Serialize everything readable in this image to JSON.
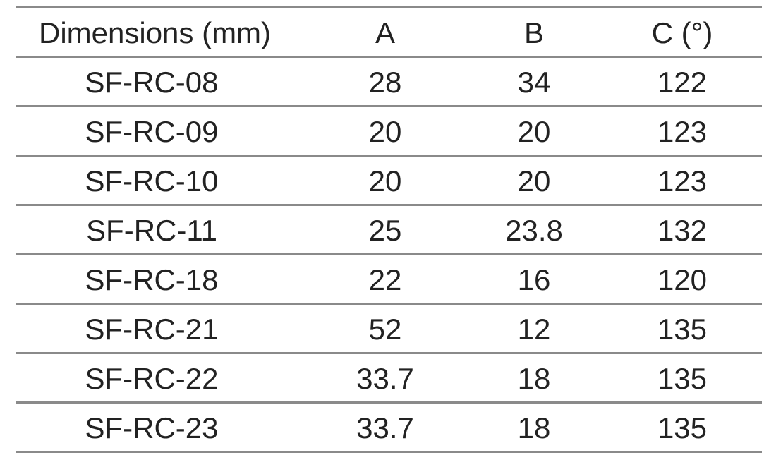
{
  "table": {
    "header": [
      "Dimensions (mm)",
      "A",
      "B",
      "C (°)"
    ],
    "rows": [
      [
        "SF-RC-08",
        28,
        34,
        122
      ],
      [
        "SF-RC-09",
        20,
        20,
        123
      ],
      [
        "SF-RC-10",
        20,
        20,
        123
      ],
      [
        "SF-RC-11",
        25,
        23.8,
        132
      ],
      [
        "SF-RC-18",
        22,
        16,
        120
      ],
      [
        "SF-RC-21",
        52,
        12,
        135
      ],
      [
        "SF-RC-22",
        33.7,
        18,
        135
      ],
      [
        "SF-RC-23",
        33.7,
        18,
        135
      ]
    ]
  }
}
